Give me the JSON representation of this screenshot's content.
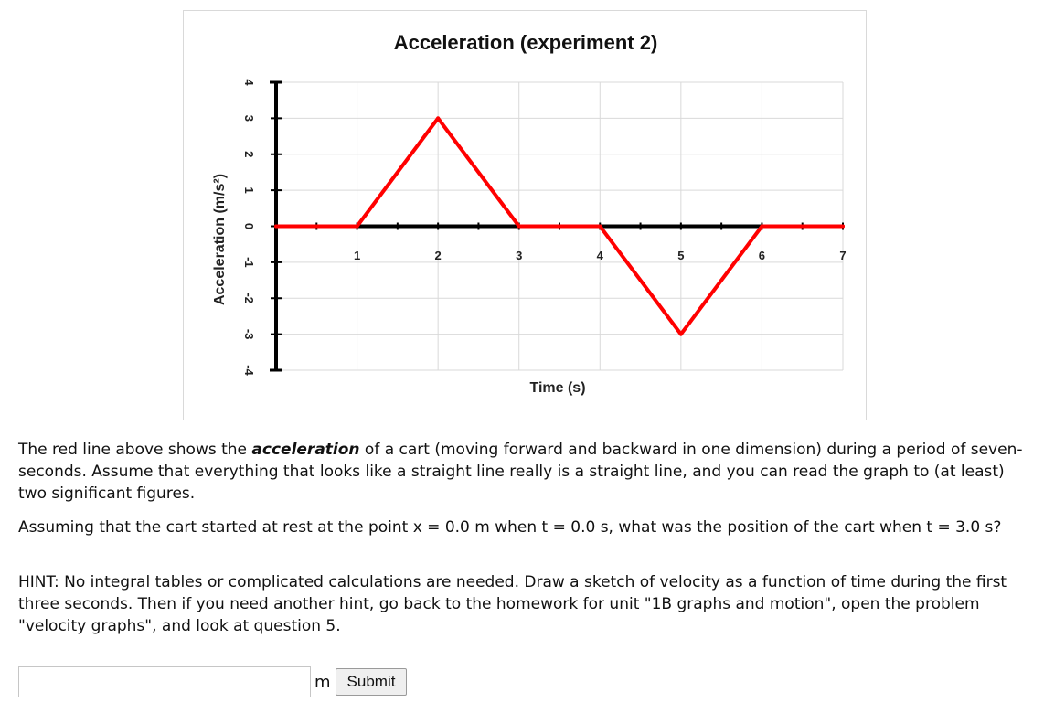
{
  "chart_data": {
    "type": "line",
    "title": "Acceleration (experiment 2)",
    "xlabel": "Time (s)",
    "ylabel": "Acceleration (m/s²)",
    "xlim": [
      0,
      7
    ],
    "ylim": [
      -4,
      4
    ],
    "x_ticks": [
      "1",
      "2",
      "3",
      "4",
      "5",
      "6",
      "7"
    ],
    "y_ticks": [
      "4",
      "3",
      "2",
      "1",
      "0",
      "-1",
      "-2",
      "-3",
      "-4"
    ],
    "grid": true,
    "legend": "none",
    "series": [
      {
        "x": [
          0,
          1,
          2,
          3,
          4,
          5,
          6,
          7
        ],
        "y": [
          0,
          0,
          3,
          0,
          0,
          -3,
          0,
          0
        ],
        "color": "#ff0000"
      }
    ]
  },
  "question": {
    "p1_before": "The red line above shows the ",
    "p1_em": "acceleration",
    "p1_after": " of a cart (moving forward and backward in one dimension) during a period of seven-seconds. Assume that everything that looks like a straight line really is a straight line, and you can read the graph to (at least) two significant figures.",
    "p2": "Assuming that the cart started at rest at the point x = 0.0 m when t = 0.0 s, what was the position of the cart when t = 3.0 s?",
    "p3": "HINT: No integral tables or complicated calculations are needed.  Draw a sketch of velocity as a function of time during the first three seconds. Then if you need another hint, go back to the homework for unit \"1B graphs and motion\", open the problem \"velocity graphs\", and look at question 5."
  },
  "answer": {
    "value": "",
    "unit": "m",
    "submit_label": "Submit"
  }
}
